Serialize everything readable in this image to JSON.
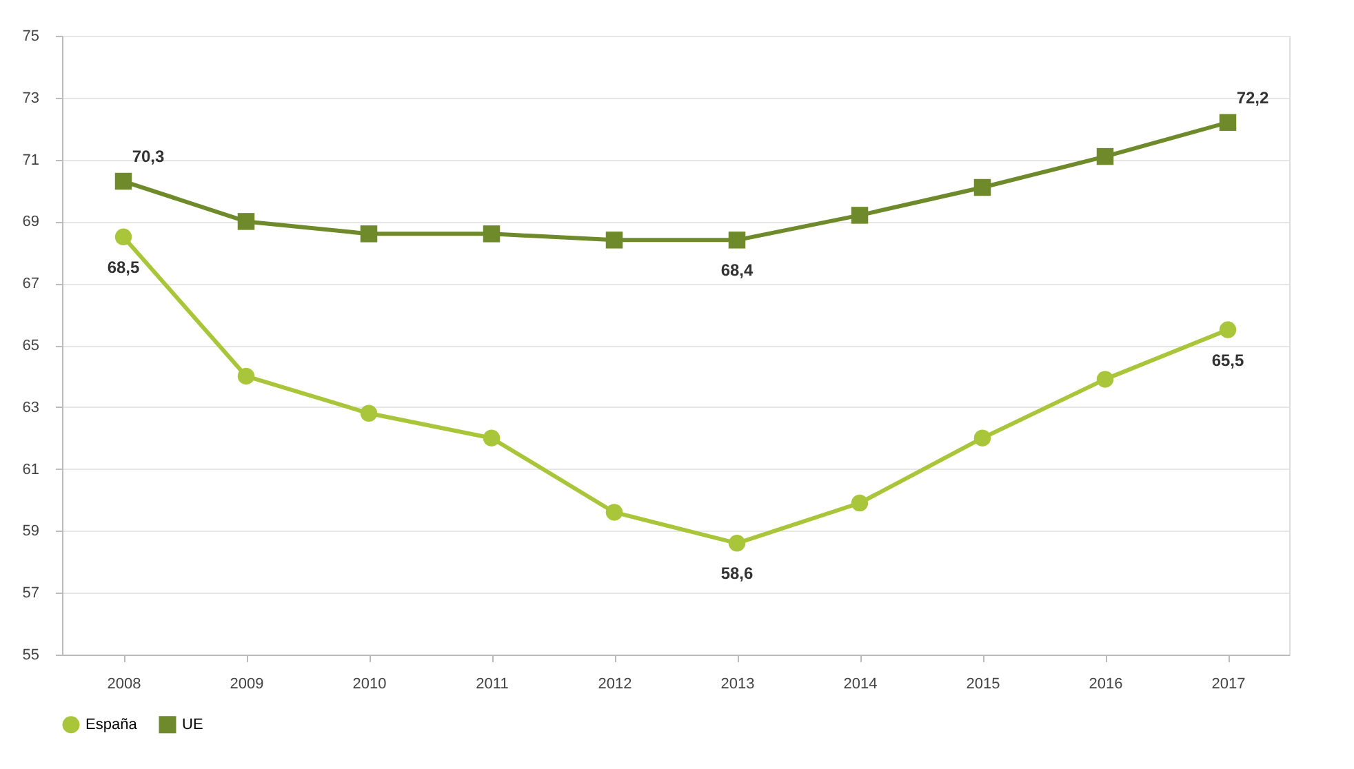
{
  "chart_data": {
    "type": "line",
    "categories": [
      "2008",
      "2009",
      "2010",
      "2011",
      "2012",
      "2013",
      "2014",
      "2015",
      "2016",
      "2017"
    ],
    "ylim": [
      55,
      75
    ],
    "yticks": [
      55,
      57,
      59,
      61,
      63,
      65,
      67,
      69,
      71,
      73,
      75
    ],
    "grid": "y",
    "legend": "bottom",
    "line_style": "solid",
    "series": [
      {
        "name": "España",
        "color": "#a9c63a",
        "marker": "circle",
        "values": [
          68.5,
          64.0,
          62.8,
          62.0,
          59.6,
          58.6,
          59.9,
          62.0,
          63.9,
          65.5
        ],
        "value_labels": [
          "68,5",
          null,
          null,
          null,
          null,
          "58,6",
          null,
          null,
          null,
          "65,5"
        ]
      },
      {
        "name": "UE",
        "color": "#6f8a2a",
        "marker": "square",
        "values": [
          70.3,
          69.0,
          68.6,
          68.6,
          68.4,
          68.4,
          69.2,
          70.1,
          71.1,
          72.2
        ],
        "value_labels": [
          "70,3",
          null,
          null,
          null,
          null,
          "68,4",
          null,
          null,
          null,
          "72,2"
        ]
      }
    ]
  }
}
